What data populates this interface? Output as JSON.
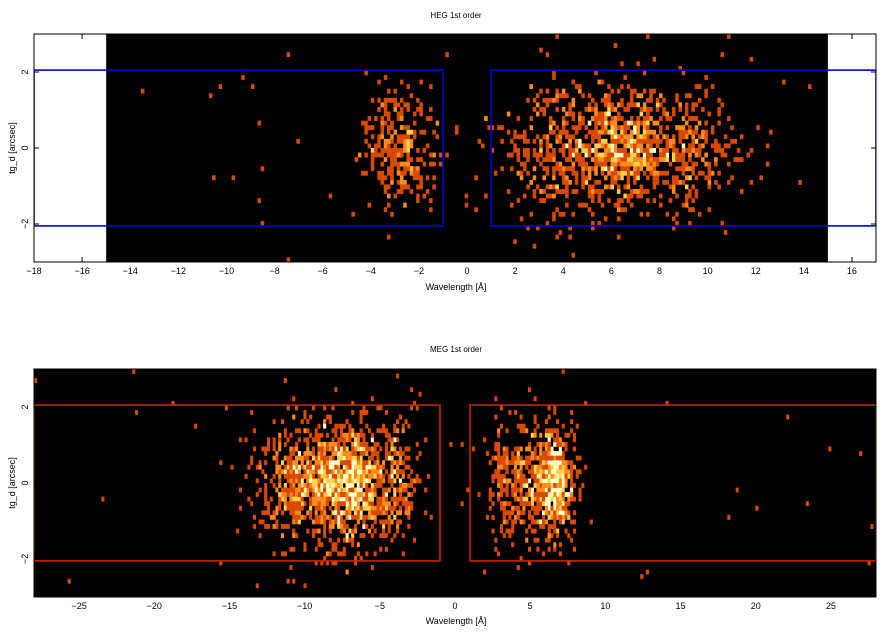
{
  "chart_data": [
    {
      "type": "heatmap",
      "title": "HEG 1st order",
      "xlabel": "Wavelength [Å]",
      "ylabel": "tg_d [arcsec]",
      "xlim": [
        -18,
        17
      ],
      "ylim": [
        -3,
        3
      ],
      "xticks": [
        -18,
        -16,
        -14,
        -12,
        -10,
        -8,
        -6,
        -4,
        -2,
        0,
        2,
        4,
        6,
        8,
        10,
        12,
        14,
        16
      ],
      "yticks": [
        -2,
        0,
        2
      ],
      "data_region": [
        -15,
        15
      ],
      "colormap": [
        "#000000",
        "#7a1a00",
        "#d94a00",
        "#ff8c1a",
        "#ffd24d",
        "#ffffcc"
      ],
      "frame_color": "#0000dd",
      "extraction_regions": [
        {
          "x": [
            -18,
            -1
          ],
          "y": [
            -2.05,
            2.05
          ]
        },
        {
          "x": [
            1,
            17
          ],
          "y": [
            -2.05,
            2.05
          ]
        }
      ],
      "source_clumps": [
        {
          "x_center": -2.8,
          "x_width": 1.1,
          "y_width": 0.8,
          "weight": 0.18
        },
        {
          "x_center": 4.5,
          "x_width": 2.2,
          "y_width": 0.9,
          "weight": 0.35
        },
        {
          "x_center": 6.8,
          "x_width": 1.3,
          "y_width": 0.7,
          "weight": 0.32
        },
        {
          "x_center": 9.5,
          "x_width": 1.4,
          "y_width": 0.8,
          "weight": 0.15
        }
      ]
    },
    {
      "type": "heatmap",
      "title": "MEG 1st order",
      "xlabel": "Wavelength [Å]",
      "ylabel": "tg_d [arcsec]",
      "xlim": [
        -28,
        28
      ],
      "ylim": [
        -3,
        3
      ],
      "xticks": [
        -25,
        -20,
        -15,
        -10,
        -5,
        0,
        5,
        10,
        15,
        20,
        25
      ],
      "yticks": [
        -2,
        0,
        2
      ],
      "colormap": [
        "#000000",
        "#7a1a00",
        "#d94a00",
        "#ff8c1a",
        "#ffd24d",
        "#ffffcc"
      ],
      "frame_color": "#cc2200",
      "extraction_regions": [
        {
          "x": [
            -28,
            -1
          ],
          "y": [
            -2.05,
            2.05
          ]
        },
        {
          "x": [
            1,
            28
          ],
          "y": [
            -2.05,
            2.05
          ]
        }
      ],
      "source_clumps": [
        {
          "x_center": -9.5,
          "x_width": 2.6,
          "y_width": 0.85,
          "weight": 0.3
        },
        {
          "x_center": -6.8,
          "x_width": 1.4,
          "y_width": 0.75,
          "weight": 0.25
        },
        {
          "x_center": -4.0,
          "x_width": 1.2,
          "y_width": 0.85,
          "weight": 0.1
        },
        {
          "x_center": 4.5,
          "x_width": 1.8,
          "y_width": 0.85,
          "weight": 0.15
        },
        {
          "x_center": 6.6,
          "x_width": 0.9,
          "y_width": 0.7,
          "weight": 0.2
        }
      ]
    }
  ]
}
